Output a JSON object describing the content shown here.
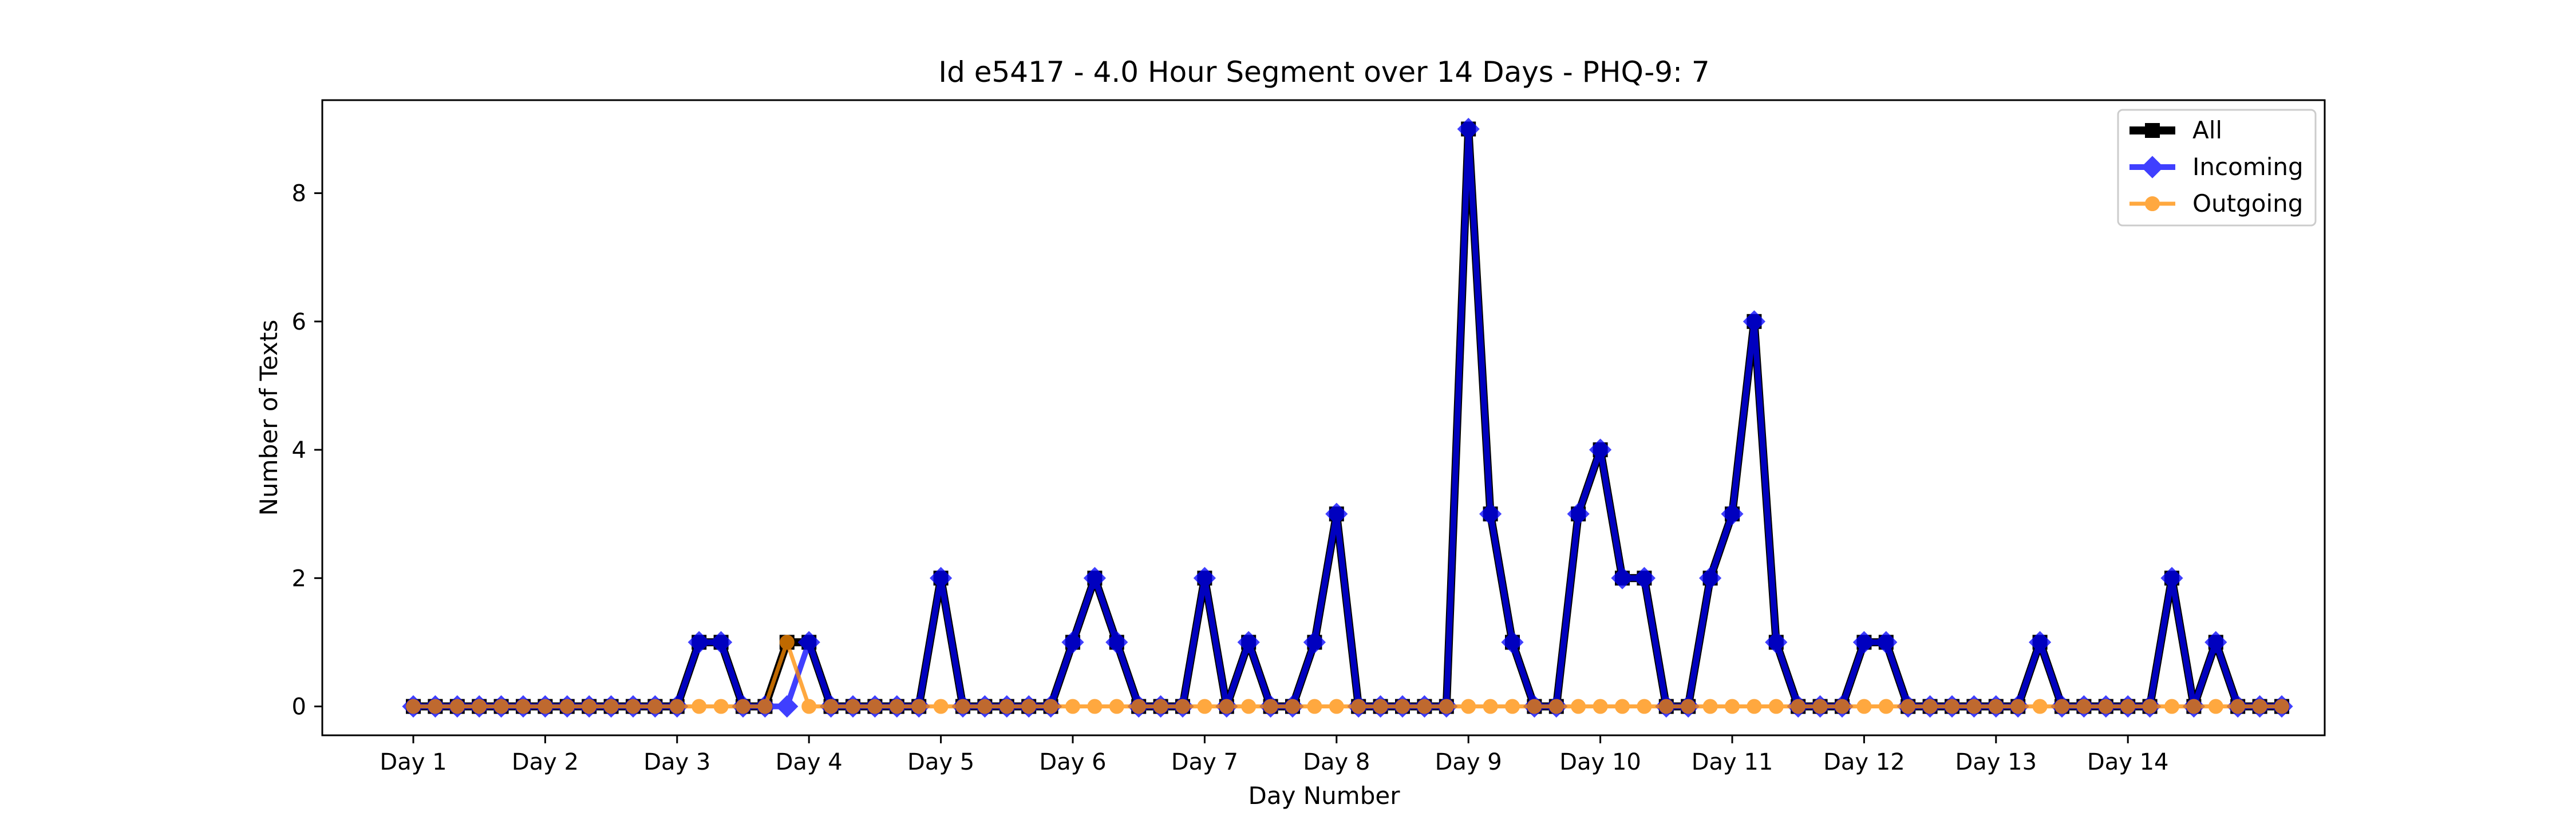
{
  "chart_data": {
    "type": "line",
    "title": "Id e5417 - 4.0 Hour Segment over 14 Days - PHQ-9: 7",
    "xlabel": "Day Number",
    "ylabel": "Number of Texts",
    "xticks": [
      "Day 1",
      "Day 2",
      "Day 3",
      "Day 4",
      "Day 5",
      "Day 6",
      "Day 7",
      "Day 8",
      "Day 9",
      "Day 10",
      "Day 11",
      "Day 12",
      "Day 13",
      "Day 14"
    ],
    "points_per_day": 6,
    "yticks": [
      0,
      2,
      4,
      6,
      8
    ],
    "ylim": [
      -0.45,
      9.45
    ],
    "grid": false,
    "legend_position": "top-right",
    "series": [
      {
        "name": "All",
        "color": "#000000",
        "marker": "square",
        "values": [
          0,
          0,
          0,
          0,
          0,
          0,
          0,
          0,
          0,
          0,
          0,
          0,
          0,
          1,
          1,
          0,
          0,
          1,
          1,
          0,
          0,
          0,
          0,
          0,
          2,
          0,
          0,
          0,
          0,
          0,
          1,
          2,
          1,
          0,
          0,
          0,
          2,
          0,
          1,
          0,
          0,
          1,
          3,
          0,
          0,
          0,
          0,
          0,
          9,
          3,
          1,
          0,
          0,
          3,
          4,
          2,
          2,
          0,
          0,
          2,
          3,
          6,
          1,
          0,
          0,
          0,
          1,
          1,
          0,
          0,
          0,
          0,
          0,
          0,
          1,
          0,
          0,
          0,
          0,
          0,
          2,
          0,
          1,
          0,
          0,
          0
        ]
      },
      {
        "name": "Incoming",
        "color": "#0000ff",
        "marker": "diamond",
        "values": [
          0,
          0,
          0,
          0,
          0,
          0,
          0,
          0,
          0,
          0,
          0,
          0,
          0,
          1,
          1,
          0,
          0,
          0,
          1,
          0,
          0,
          0,
          0,
          0,
          2,
          0,
          0,
          0,
          0,
          0,
          1,
          2,
          1,
          0,
          0,
          0,
          2,
          0,
          1,
          0,
          0,
          1,
          3,
          0,
          0,
          0,
          0,
          0,
          9,
          3,
          1,
          0,
          0,
          3,
          4,
          2,
          2,
          0,
          0,
          2,
          3,
          6,
          1,
          0,
          0,
          0,
          1,
          1,
          0,
          0,
          0,
          0,
          0,
          0,
          1,
          0,
          0,
          0,
          0,
          0,
          2,
          0,
          1,
          0,
          0,
          0
        ]
      },
      {
        "name": "Outgoing",
        "color": "#ff8c00",
        "marker": "circle",
        "values": [
          0,
          0,
          0,
          0,
          0,
          0,
          0,
          0,
          0,
          0,
          0,
          0,
          0,
          0,
          0,
          0,
          0,
          1,
          0,
          0,
          0,
          0,
          0,
          0,
          0,
          0,
          0,
          0,
          0,
          0,
          0,
          0,
          0,
          0,
          0,
          0,
          0,
          0,
          0,
          0,
          0,
          0,
          0,
          0,
          0,
          0,
          0,
          0,
          0,
          0,
          0,
          0,
          0,
          0,
          0,
          0,
          0,
          0,
          0,
          0,
          0,
          0,
          0,
          0,
          0,
          0,
          0,
          0,
          0,
          0,
          0,
          0,
          0,
          0,
          0,
          0,
          0,
          0,
          0,
          0,
          0,
          0,
          0,
          0,
          0,
          0
        ]
      }
    ]
  }
}
